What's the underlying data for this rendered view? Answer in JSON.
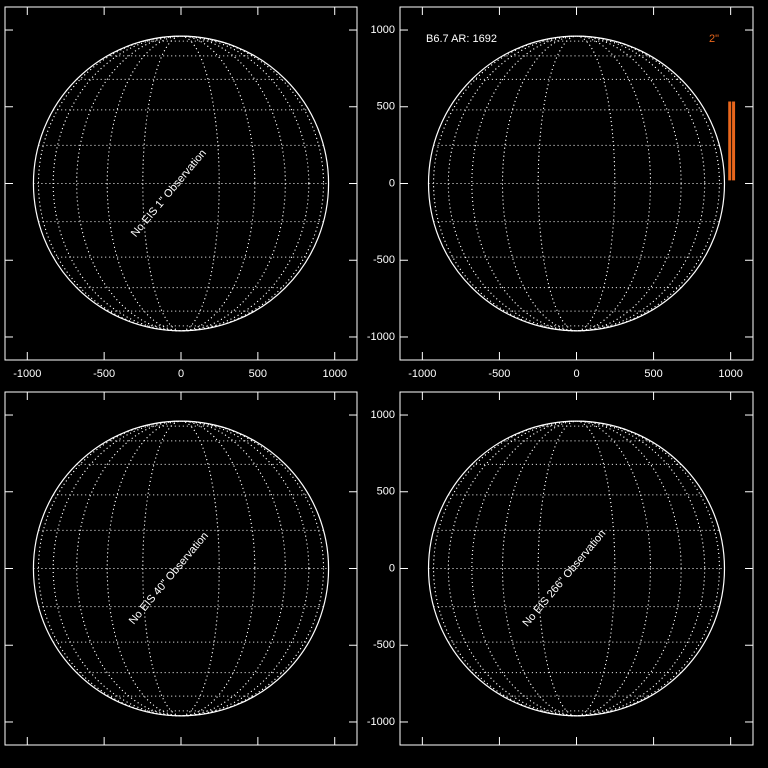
{
  "chart_data": [
    {
      "type": "solar_disk",
      "annotation": "No EIS 1\" Observation",
      "disk_radius": 960,
      "grid": true,
      "xlim": [
        -1145,
        1145
      ],
      "ylim": [
        -1150,
        1150
      ],
      "xticks": [
        -1000,
        -500,
        0,
        500,
        1000
      ],
      "yticks": [
        -1000,
        -500,
        0,
        500,
        1000
      ],
      "xtick_labels": true,
      "ytick_labels": false
    },
    {
      "type": "solar_disk",
      "label": "B6.7 AR: 1692",
      "slit_label": "2\"",
      "slit_color": "#e8661c",
      "disk_radius": 960,
      "grid": true,
      "slits": [
        {
          "x": 994,
          "y": [
            20,
            534
          ]
        },
        {
          "x": 1019,
          "y": [
            20,
            534
          ]
        }
      ],
      "xlim": [
        -1145,
        1145
      ],
      "ylim": [
        -1150,
        1150
      ],
      "xticks": [
        -1000,
        -500,
        0,
        500,
        1000
      ],
      "yticks": [
        -1000,
        -500,
        0,
        500,
        1000
      ],
      "xtick_labels": true,
      "ytick_labels": true
    },
    {
      "type": "solar_disk",
      "annotation": "No EIS 40\" Observation",
      "disk_radius": 960,
      "grid": true,
      "xlim": [
        -1145,
        1145
      ],
      "ylim": [
        -1150,
        1150
      ],
      "xticks": [
        -1000,
        -500,
        0,
        500,
        1000
      ],
      "yticks": [
        -1000,
        -500,
        0,
        500,
        1000
      ],
      "xtick_labels": false,
      "ytick_labels": false
    },
    {
      "type": "solar_disk",
      "annotation": "No EIS 266\" Observation",
      "disk_radius": 960,
      "grid": true,
      "xlim": [
        -1145,
        1145
      ],
      "ylim": [
        -1150,
        1150
      ],
      "xticks": [
        -1000,
        -500,
        0,
        500,
        1000
      ],
      "yticks": [
        -1000,
        -500,
        0,
        500,
        1000
      ],
      "xtick_labels": false,
      "ytick_labels": true
    }
  ]
}
